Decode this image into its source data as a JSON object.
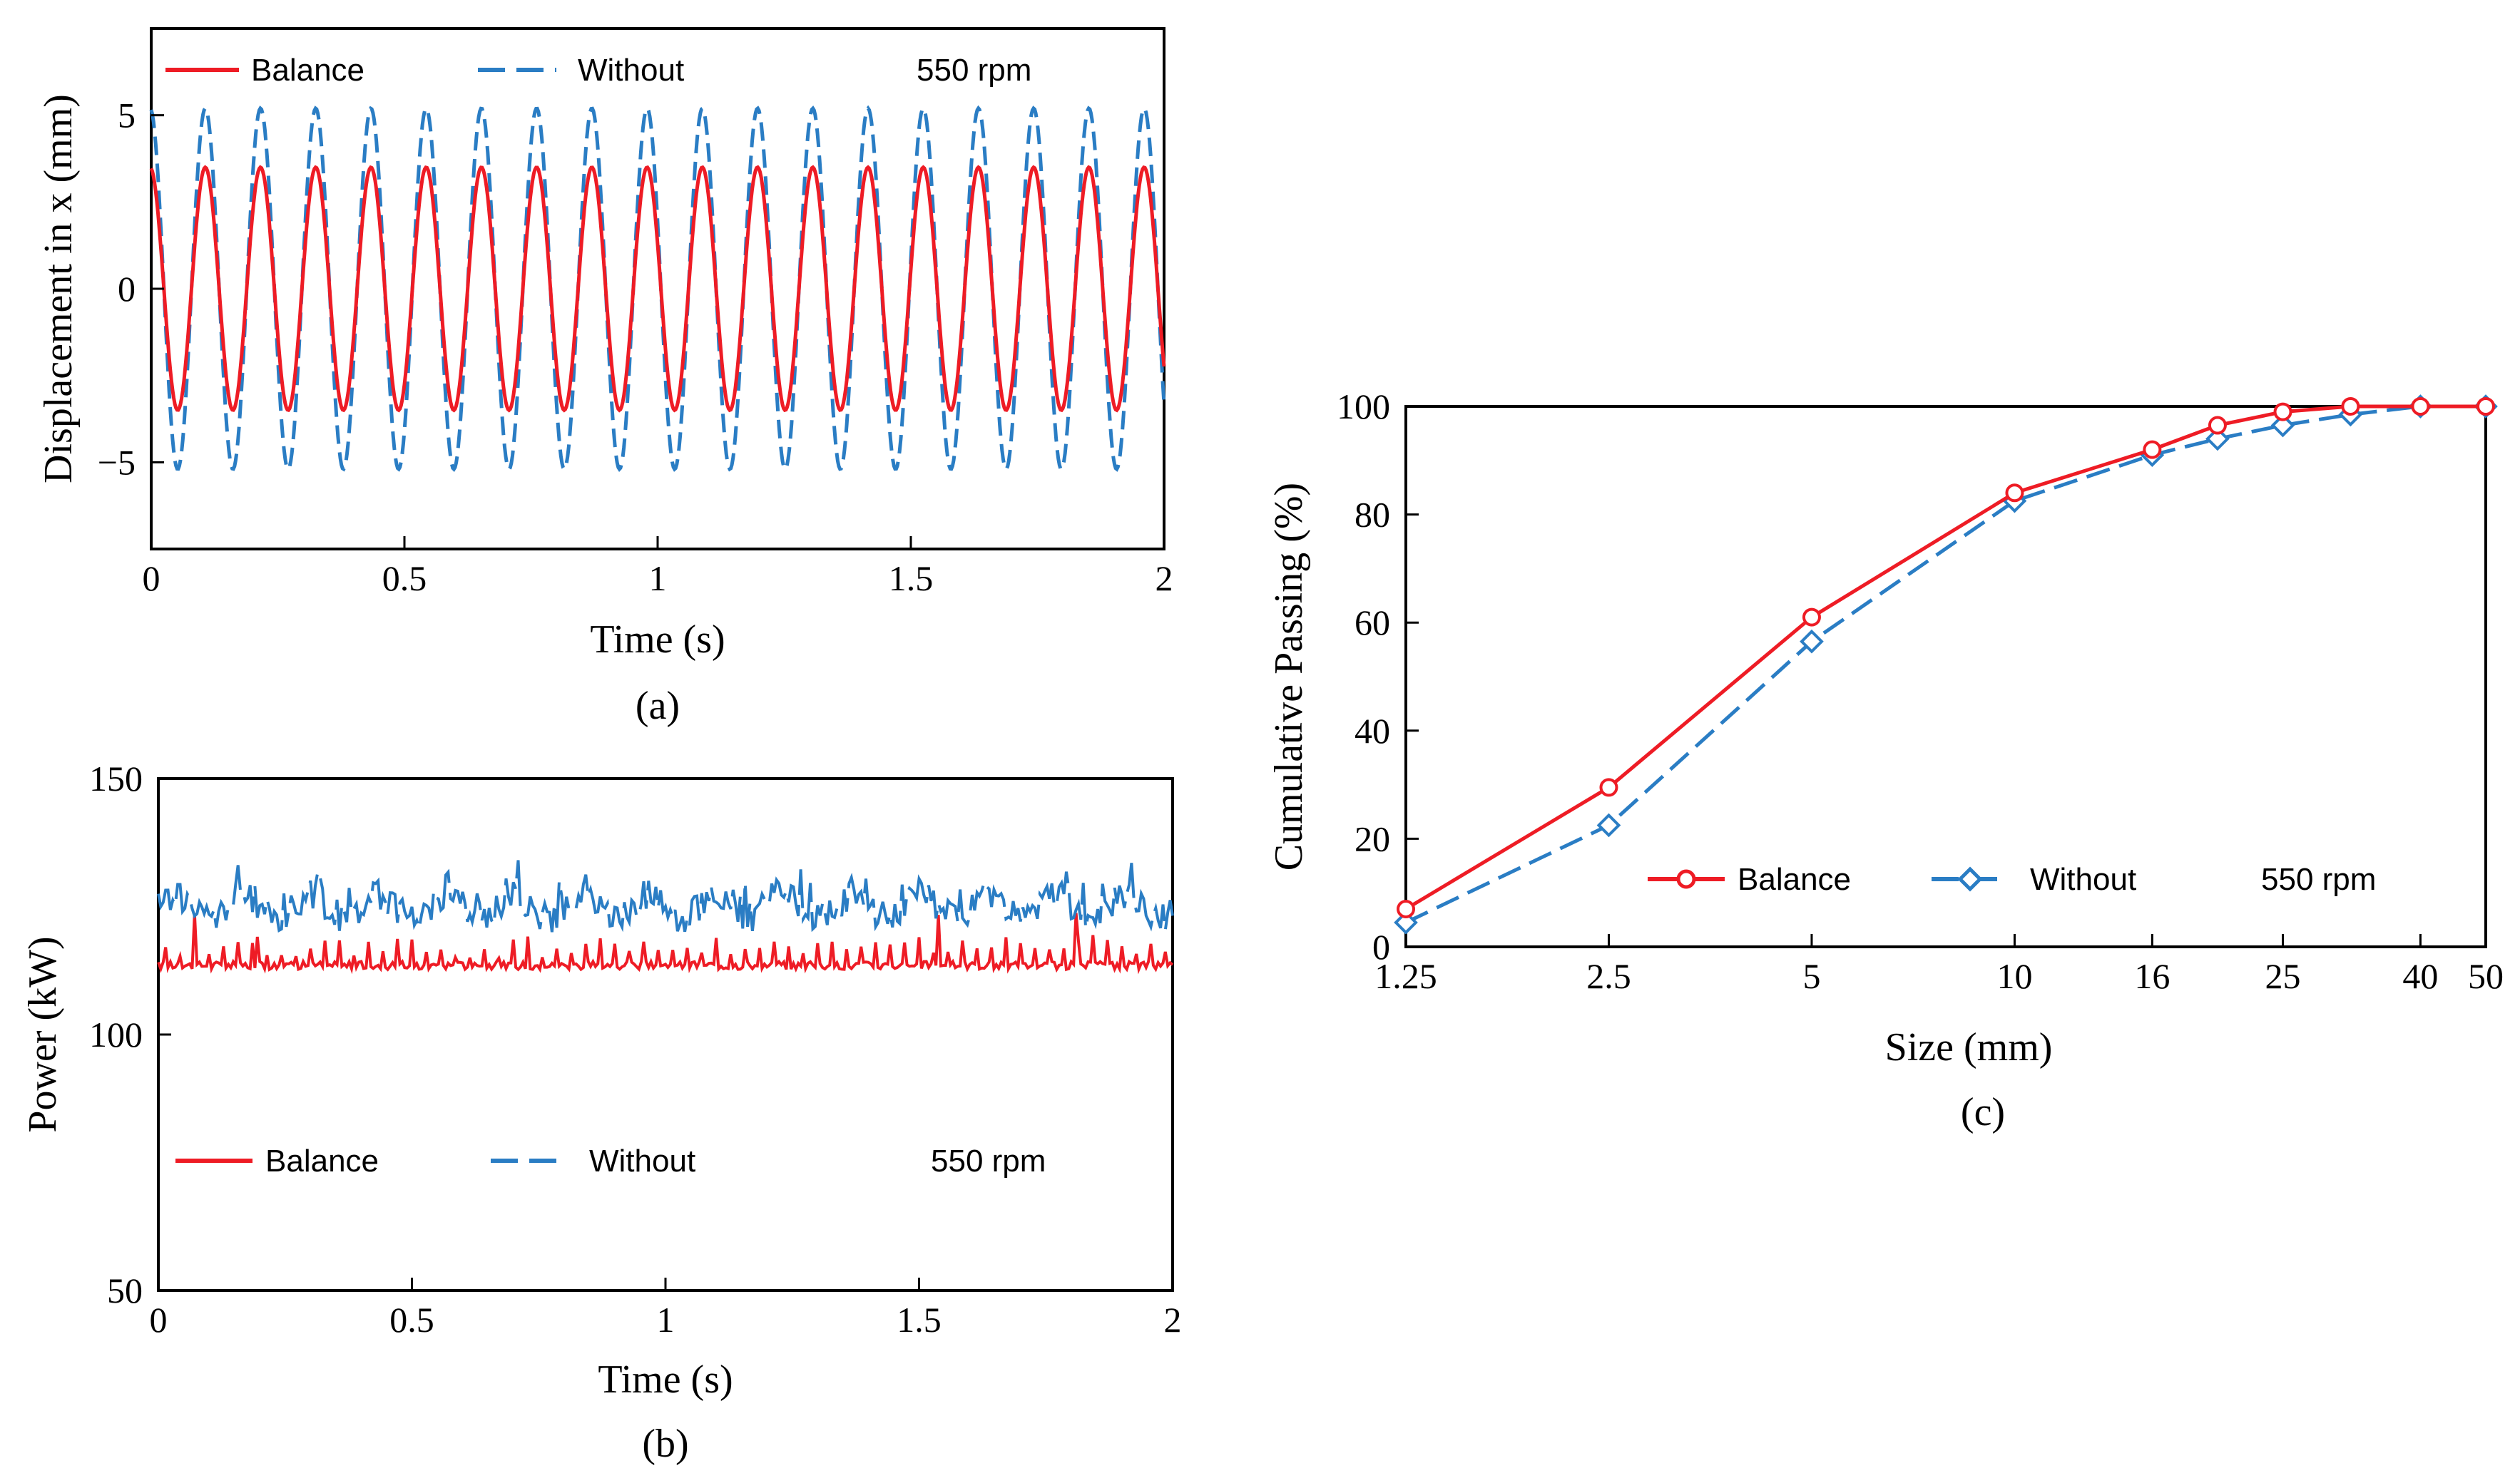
{
  "colors": {
    "balance": "#ee1c25",
    "without": "#2a7dc4",
    "axis": "#000000"
  },
  "chart_data": [
    {
      "id": "a",
      "panel_label": "(a)",
      "type": "line",
      "xlabel": "Time (s)",
      "ylabel": "Displacement in x (mm)",
      "xlim": [
        0,
        2
      ],
      "ylim": [
        -7.5,
        7.5
      ],
      "xticks": [
        0,
        0.5,
        1,
        1.5,
        2
      ],
      "xtick_labels": [
        "0",
        "0.5",
        "1",
        "1.5",
        "2"
      ],
      "yticks": [
        -5,
        0,
        5
      ],
      "ytick_labels": [
        "−5",
        "0",
        "5"
      ],
      "grid": false,
      "legend_position": "top",
      "annotation": "550 rpm",
      "series": [
        {
          "name": "Balance",
          "color_key": "balance",
          "style": "solid",
          "frequency_hz": 9.17,
          "amplitude": 3.5,
          "phase": 1.7
        },
        {
          "name": "Without",
          "color_key": "without",
          "style": "dashed",
          "frequency_hz": 9.17,
          "amplitude": 5.2,
          "phase": 1.7
        }
      ]
    },
    {
      "id": "b",
      "panel_label": "(b)",
      "type": "line",
      "xlabel": "Time (s)",
      "ylabel": "Power (kW)",
      "xlim": [
        0,
        2
      ],
      "ylim": [
        50,
        150
      ],
      "xticks": [
        0,
        0.5,
        1,
        1.5,
        2
      ],
      "xtick_labels": [
        "0",
        "0.5",
        "1",
        "1.5",
        "2"
      ],
      "yticks": [
        50,
        100,
        150
      ],
      "ytick_labels": [
        "50",
        "100",
        "150"
      ],
      "grid": false,
      "legend_position": "bottom",
      "annotation": "550 rpm",
      "series": [
        {
          "name": "Balance",
          "color_key": "balance",
          "style": "solid",
          "mean": 113.5,
          "noise": 3.5
        },
        {
          "name": "Without",
          "color_key": "without",
          "style": "dashed",
          "mean": 125,
          "noise": 6
        }
      ]
    },
    {
      "id": "c",
      "panel_label": "(c)",
      "type": "line",
      "xlabel": "Size (mm)",
      "ylabel": "Cumulative Passing (%)",
      "xscale": "log",
      "xlim": [
        1.25,
        50
      ],
      "ylim": [
        0,
        100
      ],
      "xticks": [
        1.25,
        2.5,
        5,
        10,
        16,
        25,
        40,
        50
      ],
      "xtick_labels": [
        "1.25",
        "2.5",
        "5",
        "10",
        "16",
        "25",
        "40",
        "50"
      ],
      "yticks": [
        0,
        20,
        40,
        60,
        80,
        100
      ],
      "ytick_labels": [
        "0",
        "20",
        "40",
        "60",
        "80",
        "100"
      ],
      "grid": false,
      "legend_position": "lower-right",
      "annotation": "550 rpm",
      "x": [
        1.25,
        2.5,
        5,
        10,
        16,
        20,
        25,
        31.5,
        40,
        50
      ],
      "series": [
        {
          "name": "Balance",
          "color_key": "balance",
          "style": "solid",
          "marker": "circle",
          "values": [
            7,
            29.5,
            61,
            84,
            92,
            96.5,
            99,
            100,
            100,
            100
          ]
        },
        {
          "name": "Without",
          "color_key": "without",
          "style": "dashed",
          "marker": "diamond",
          "values": [
            4.5,
            22.5,
            56.5,
            82.5,
            91,
            94,
            96.5,
            98.5,
            100,
            100
          ]
        }
      ]
    }
  ]
}
